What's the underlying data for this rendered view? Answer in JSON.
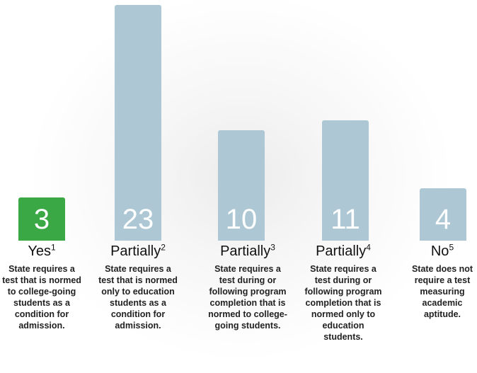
{
  "chart_data": {
    "type": "bar",
    "categories": [
      "Yes",
      "Partially",
      "Partially",
      "Partially",
      "No"
    ],
    "footnotes": [
      "1",
      "2",
      "3",
      "4",
      "5"
    ],
    "values": [
      3,
      23,
      10,
      11,
      4
    ],
    "colors": [
      "#3aa845",
      "#adc8d4",
      "#adc8d4",
      "#adc8d4",
      "#adc8d4"
    ],
    "descriptions": [
      "State requires a test that is normed to college-going students as a condition for admission.",
      "State requires a test that is normed only to education students as a condition for admission.",
      "State requires a test during or following program completion that is normed to college-going students.",
      "State requires a test during or following program completion that is normed only to education students.",
      "State does not require a test measuring academic aptitude."
    ]
  }
}
